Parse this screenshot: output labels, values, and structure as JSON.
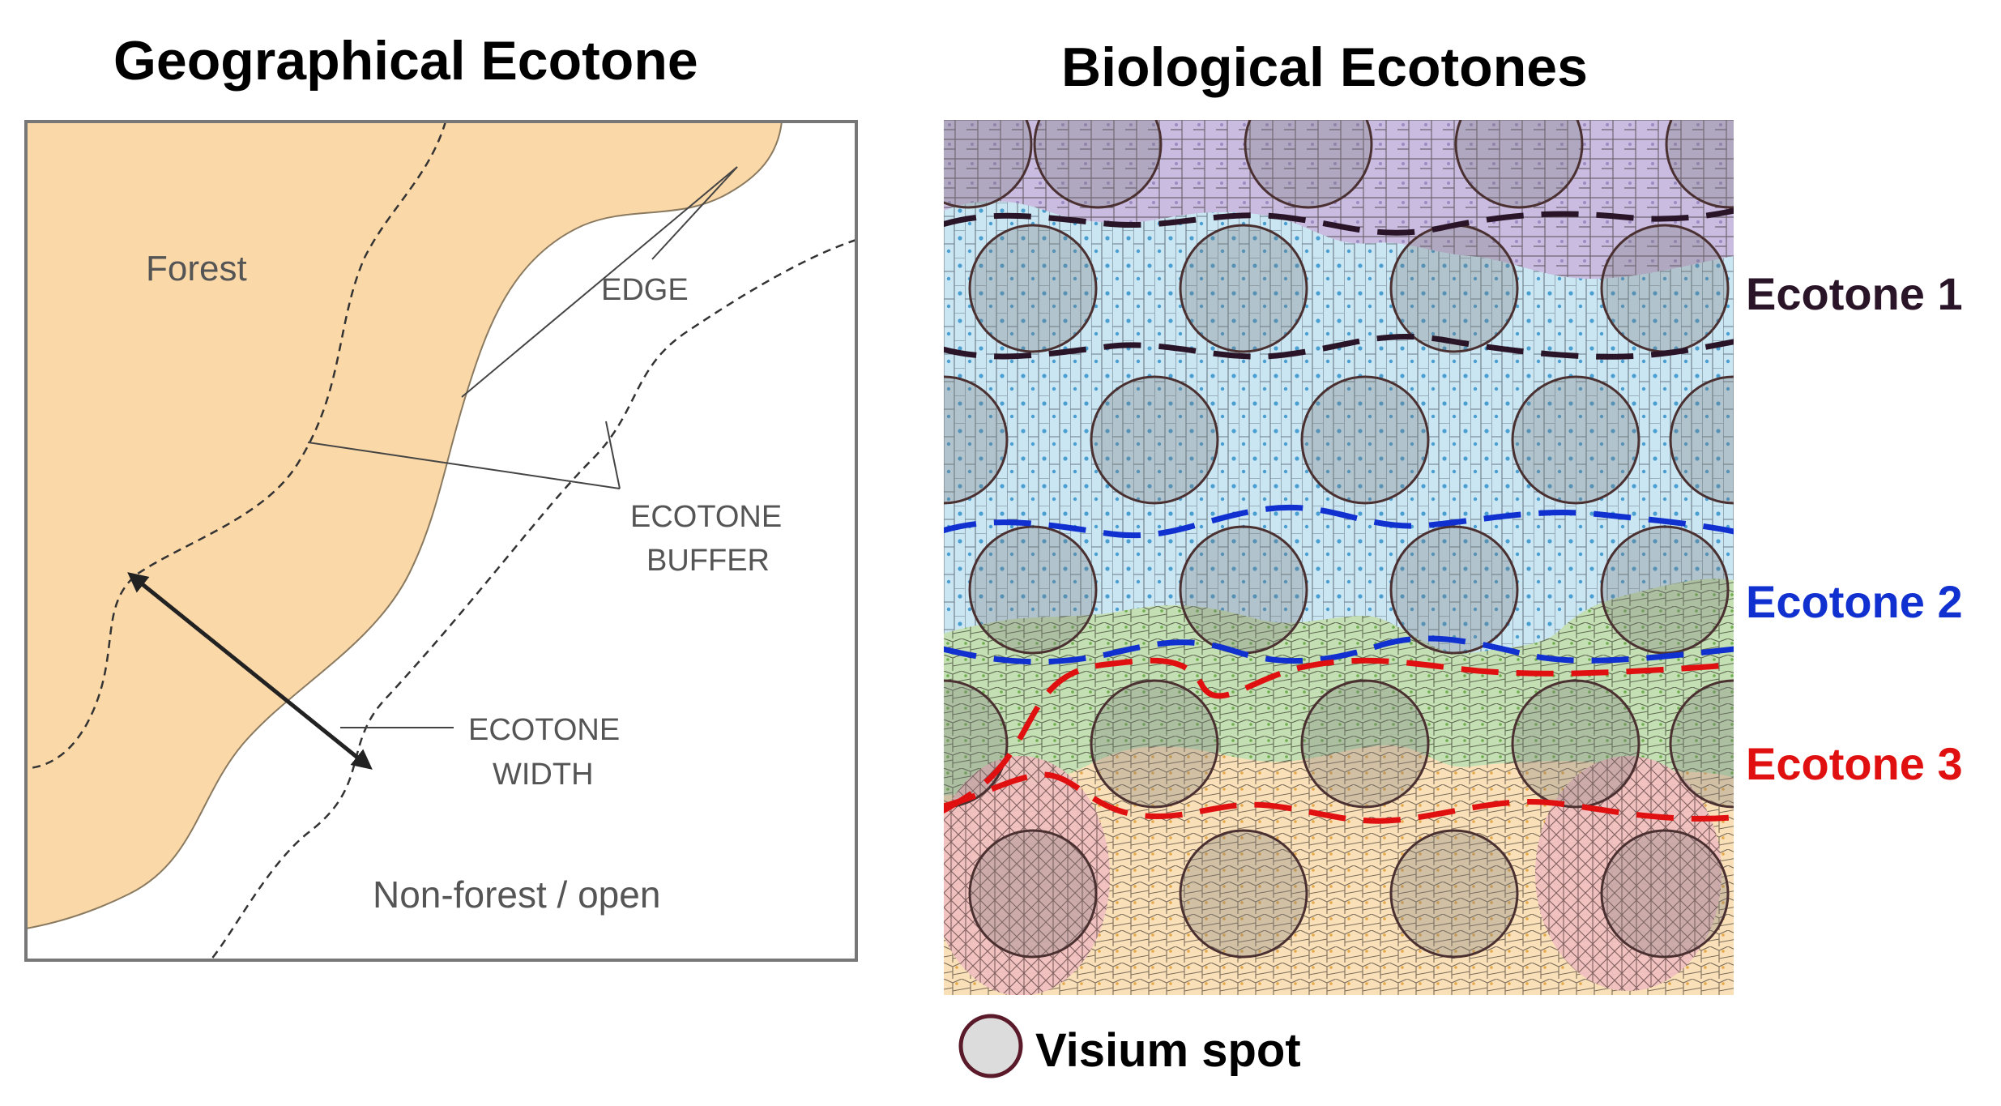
{
  "left_panel": {
    "title": "Geographical Ecotone",
    "labels": {
      "forest": "Forest",
      "edge": "EDGE",
      "ecotone_buffer_line1": "ECOTONE",
      "ecotone_buffer_line2": "BUFFER",
      "ecotone_width_line1": "ECOTONE",
      "ecotone_width_line2": "WIDTH",
      "non_forest": "Non-forest / open"
    },
    "colors": {
      "forest": "#fbd8a8",
      "frame": "#777777",
      "text": "#555555",
      "arrow": "#222222"
    }
  },
  "right_panel": {
    "title": "Biological Ecotones",
    "ecotones": [
      {
        "label": "Ecotone 1",
        "color": "#2a1528"
      },
      {
        "label": "Ecotone 2",
        "color": "#1030d0"
      },
      {
        "label": "Ecotone 3",
        "color": "#e01010"
      }
    ],
    "tissue_colors": {
      "purple": "#c9bce0",
      "blue": "#cbe6f3",
      "green": "#c5dfb4",
      "orange": "#fae0b8",
      "pink": "#f4c2c4"
    },
    "legend": {
      "label": "Visium spot",
      "icon": "circle-spot-icon"
    }
  }
}
